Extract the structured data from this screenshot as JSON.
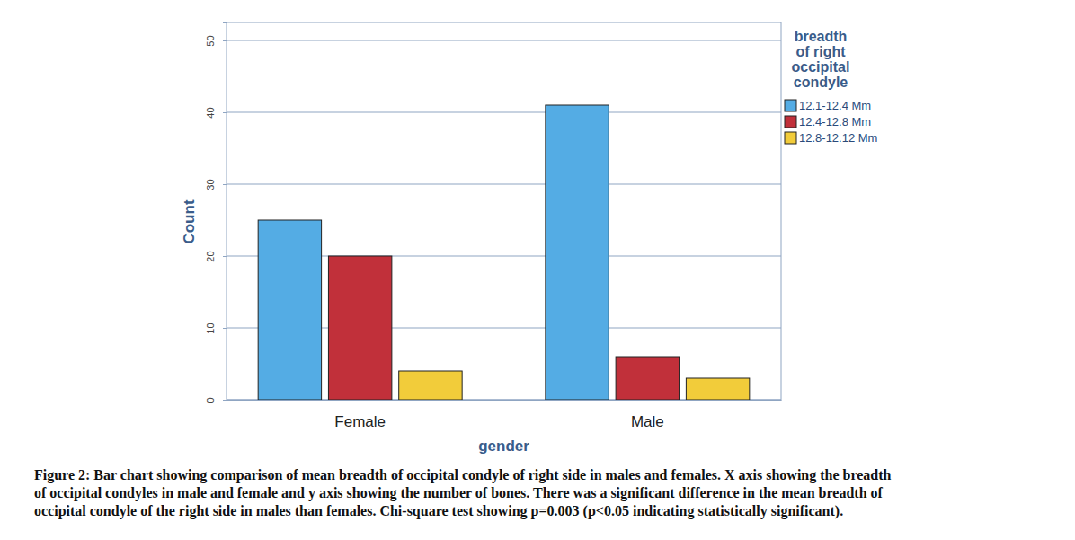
{
  "chart_data": {
    "type": "bar",
    "caption": [
      "Figure 2: Bar chart showing comparison of mean breadth of occipital condyle of right side in males and females. X axis showing the breadth",
      "of occipital condyles in male and female and y axis showing the number of bones. There was a significant difference in the mean breadth of",
      "occipital condyle of the right side in males than females. Chi-square test showing p=0.003 (p<0.05 indicating statistically significant)."
    ],
    "x_label": "gender",
    "y_label": "Count",
    "legend_title": [
      "breadth",
      "of right",
      "occipital",
      "condyle"
    ],
    "legend": "right",
    "grid": true,
    "categories": [
      "Female",
      "Male"
    ],
    "series": [
      {
        "name": "12.1-12.4 Mm",
        "color": "#54ace4",
        "values": [
          25,
          41
        ]
      },
      {
        "name": "12.4-12.8 Mm",
        "color": "#c1303a",
        "values": [
          20,
          6
        ]
      },
      {
        "name": "12.8-12.12 Mm",
        "color": "#f2cc3a",
        "values": [
          4,
          3
        ]
      }
    ],
    "ylim": [
      0,
      52.5
    ],
    "yticks": [
      0,
      10,
      20,
      30,
      40,
      50
    ]
  }
}
